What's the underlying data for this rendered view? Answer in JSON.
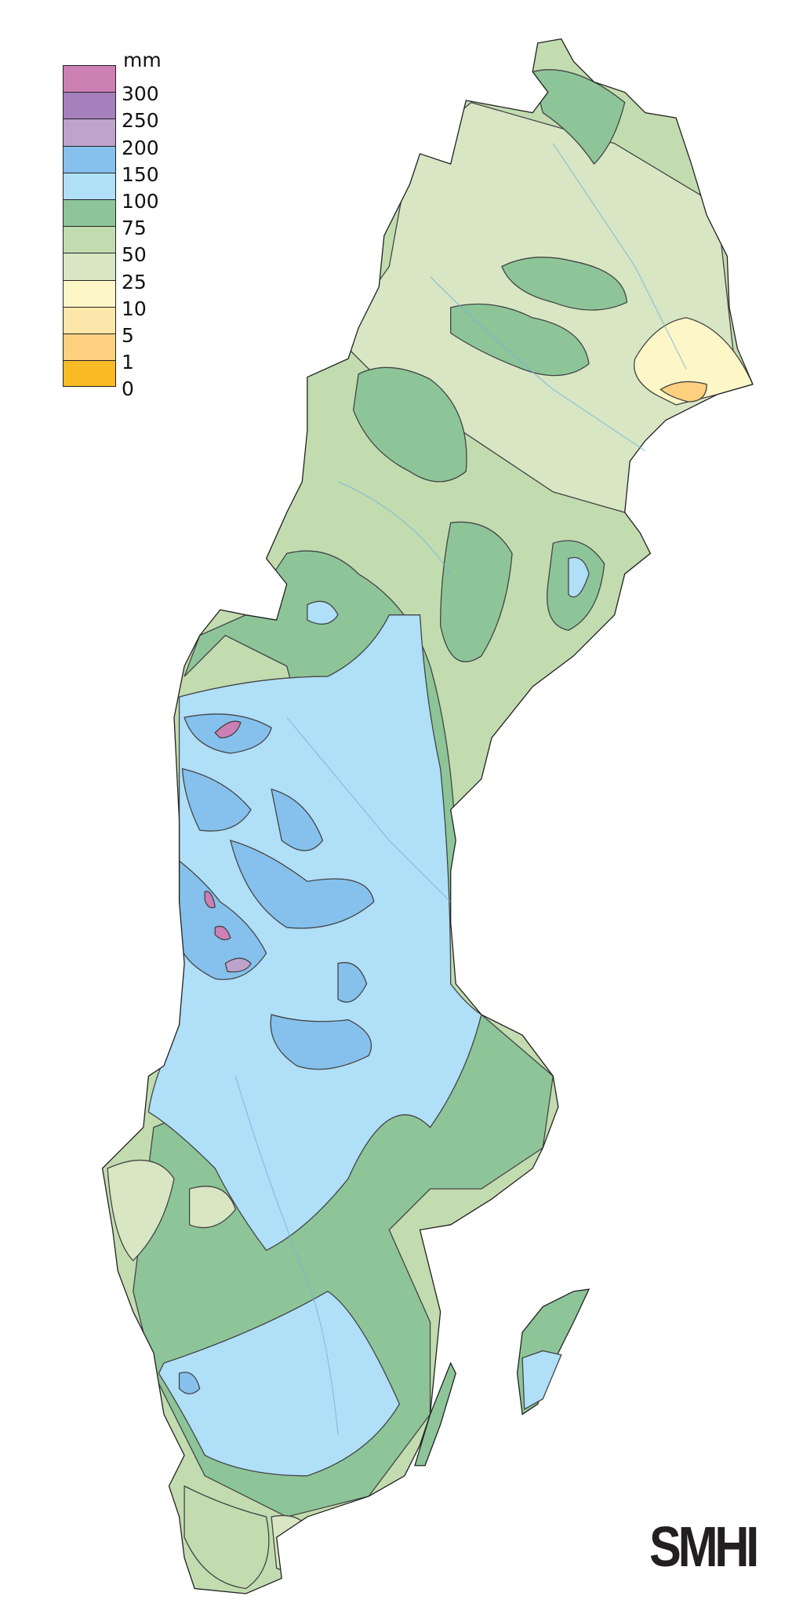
{
  "legend": {
    "unit": "mm",
    "bands": [
      {
        "color": "#cc80b4"
      },
      {
        "color": "#a67fbd"
      },
      {
        "color": "#bea3cc"
      },
      {
        "color": "#85c1ec"
      },
      {
        "color": "#b0dff8"
      },
      {
        "color": "#8dc599"
      },
      {
        "color": "#c2dcb0"
      },
      {
        "color": "#d8e6c4"
      },
      {
        "color": "#fdf7c8"
      },
      {
        "color": "#fde6a9"
      },
      {
        "color": "#fcd07e"
      },
      {
        "color": "#f9bb25"
      }
    ],
    "labels": [
      "300",
      "250",
      "200",
      "150",
      "100",
      "75",
      "50",
      "25",
      "10",
      "5",
      "1",
      "0"
    ]
  },
  "logo": "SMHI"
}
